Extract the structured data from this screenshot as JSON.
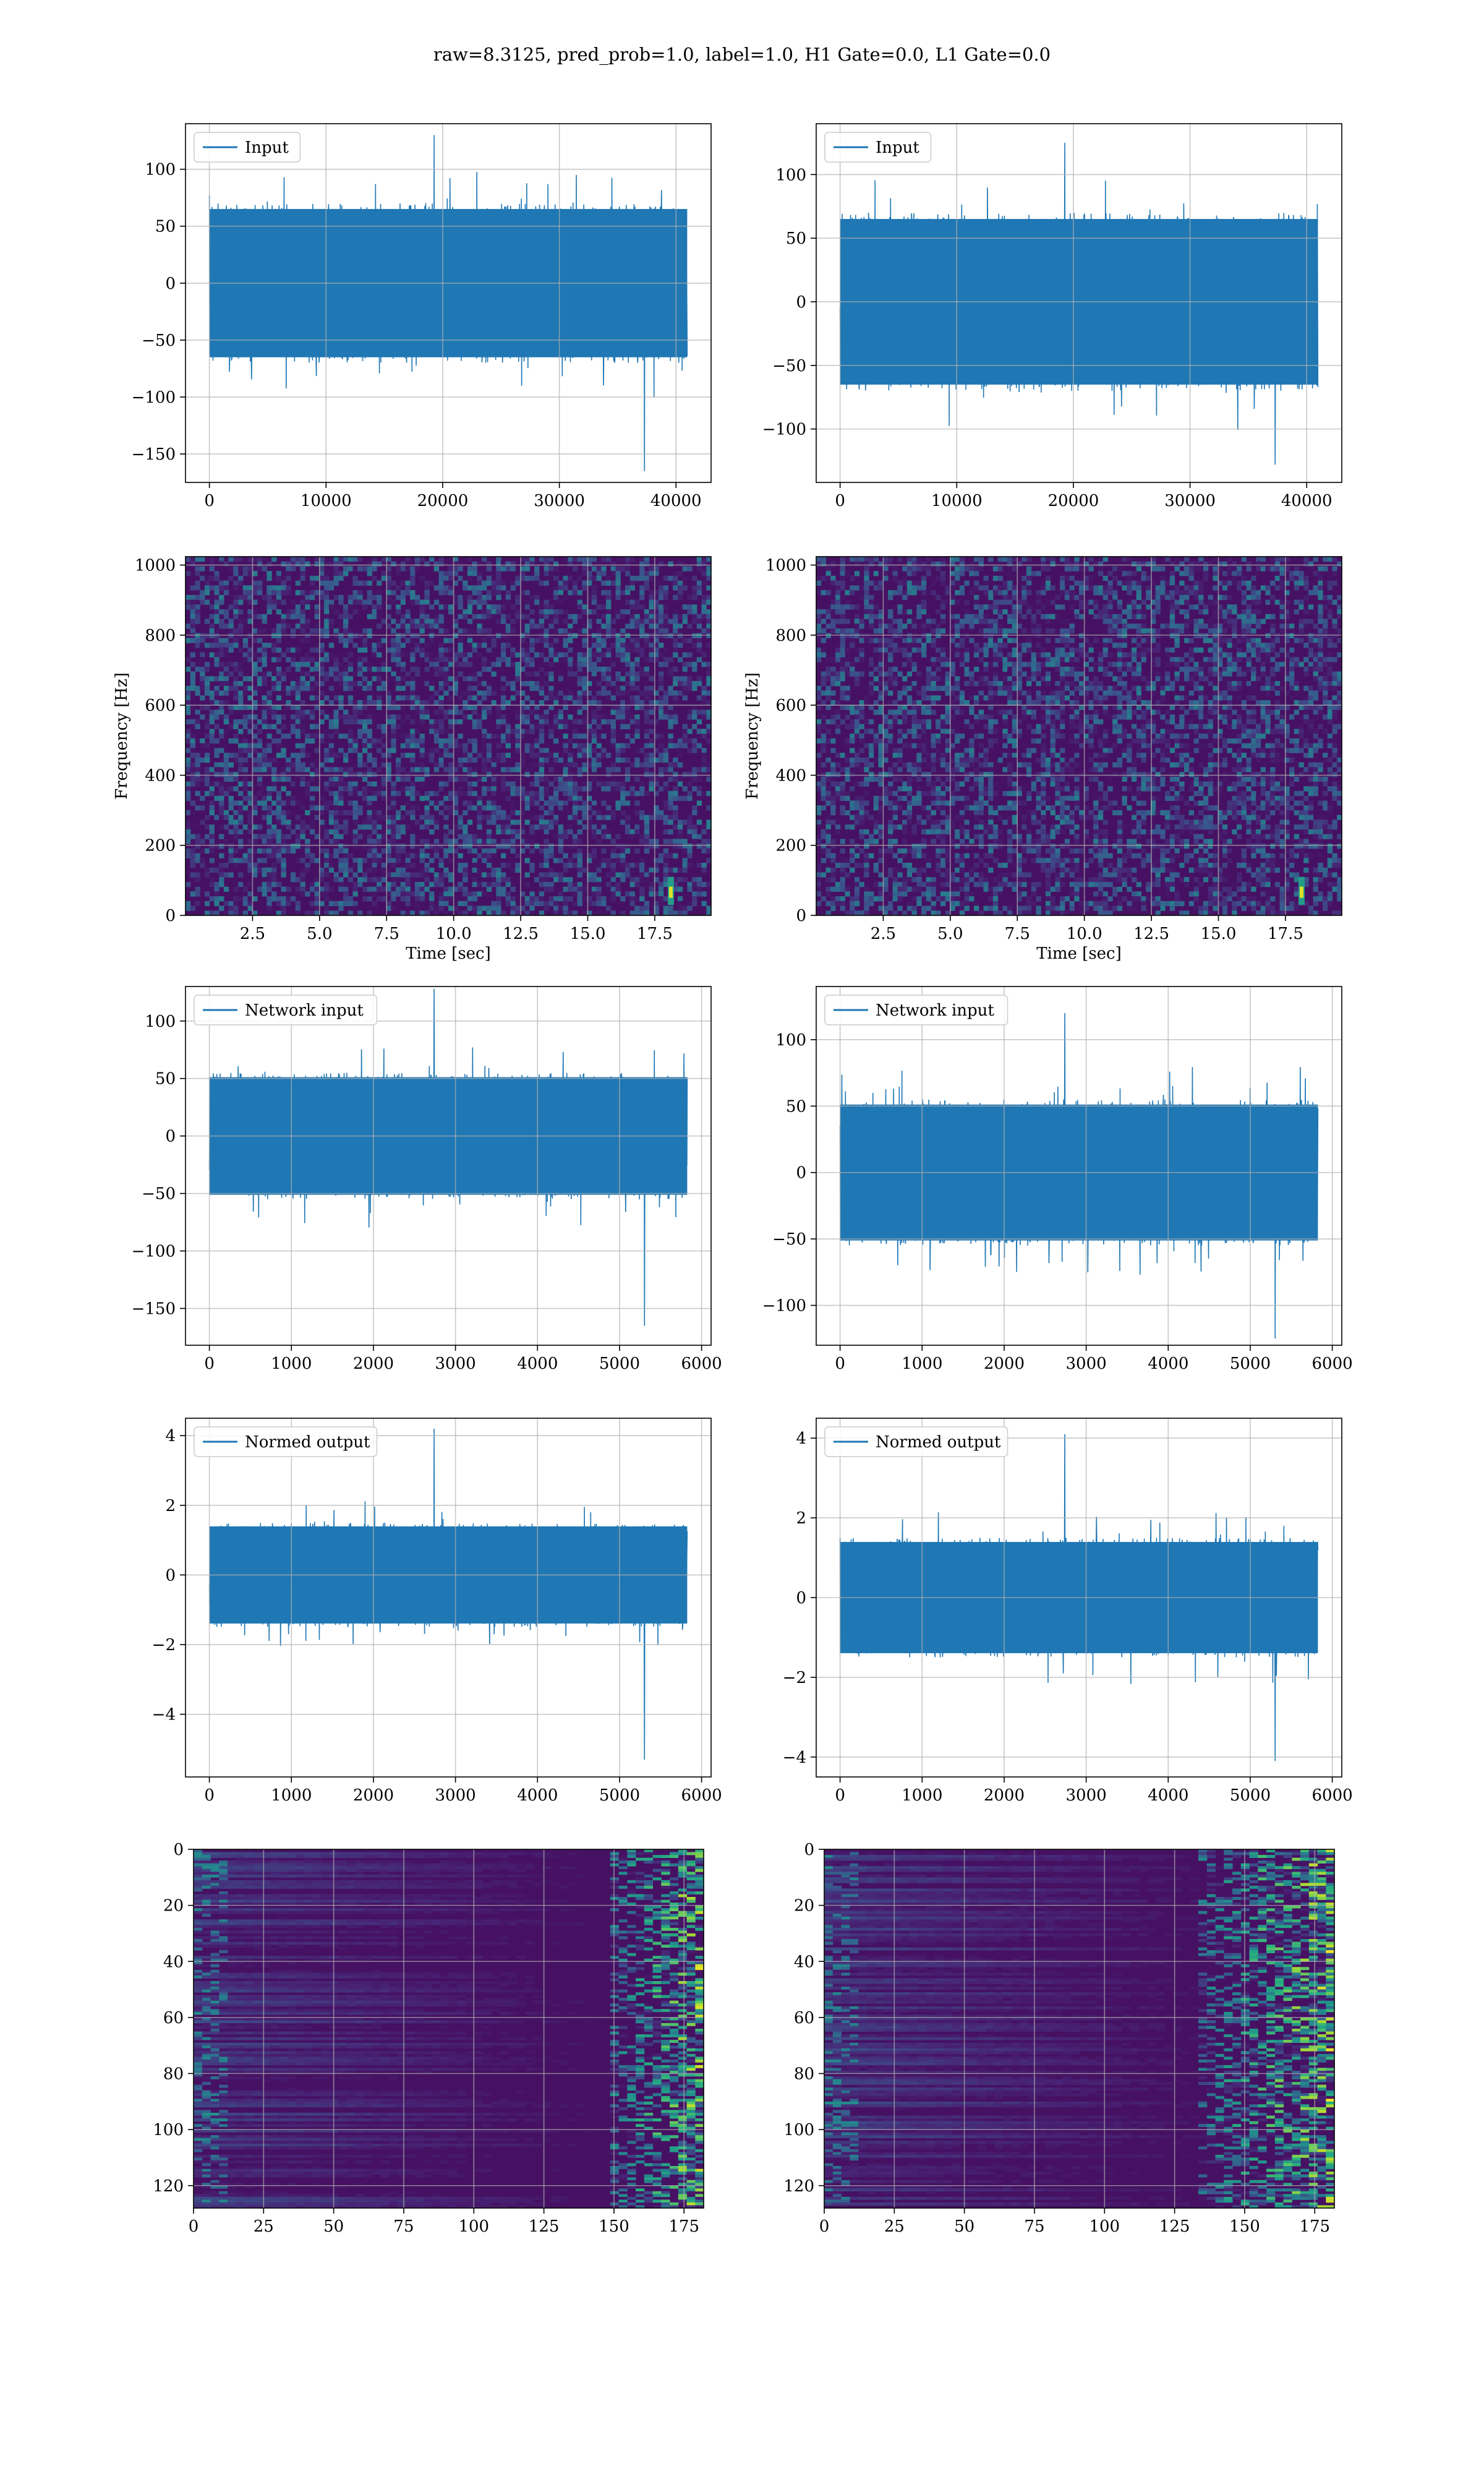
{
  "figure": {
    "suptitle": "raw=8.3125, pred_prob=1.0, label=1.0, H1 Gate=0.0, L1 Gate=0.0"
  },
  "colors": {
    "line": "#1f77b4",
    "grid": "#b0b0b0",
    "colormap": "viridis",
    "background": "#ffffff"
  },
  "chart_data": [
    {
      "id": "input-h1",
      "type": "line",
      "legend": [
        "Input"
      ],
      "legend_loc": "upper-left",
      "grid": true,
      "xlim": [
        -2048,
        43008
      ],
      "ylim": [
        -175,
        140
      ],
      "xticks": [
        0,
        10000,
        20000,
        30000,
        40000
      ],
      "yticks": [
        -150,
        -100,
        -50,
        0,
        50,
        100
      ],
      "xlabel": "",
      "ylabel": "",
      "series": [
        {
          "x_range": [
            0,
            40960
          ],
          "envelope": [
            -70,
            70
          ],
          "min_peak": -165,
          "max_peak": 130
        }
      ]
    },
    {
      "id": "input-l1",
      "type": "line",
      "legend": [
        "Input"
      ],
      "legend_loc": "upper-left",
      "grid": true,
      "xlim": [
        -2048,
        43008
      ],
      "ylim": [
        -142,
        140
      ],
      "xticks": [
        0,
        10000,
        20000,
        30000,
        40000
      ],
      "yticks": [
        -100,
        -50,
        0,
        50,
        100
      ],
      "xlabel": "",
      "ylabel": "",
      "series": [
        {
          "x_range": [
            0,
            40960
          ],
          "envelope": [
            -70,
            70
          ],
          "min_peak": -128,
          "max_peak": 125
        }
      ]
    },
    {
      "id": "spec-h1",
      "type": "heatmap",
      "colormap": "viridis",
      "grid": true,
      "xlim": [
        0,
        19.6
      ],
      "ylim": [
        0,
        1024
      ],
      "xticks": [
        2.5,
        5.0,
        7.5,
        10.0,
        12.5,
        15.0,
        17.5
      ],
      "yticks": [
        0,
        200,
        400,
        600,
        800,
        1000
      ],
      "xlabel": "Time [sec]",
      "ylabel": "Frequency [Hz]",
      "signal": {
        "t": 18.1,
        "f_range": [
          30,
          110
        ]
      }
    },
    {
      "id": "spec-l1",
      "type": "heatmap",
      "colormap": "viridis",
      "grid": true,
      "xlim": [
        0,
        19.6
      ],
      "ylim": [
        0,
        1024
      ],
      "xticks": [
        2.5,
        5.0,
        7.5,
        10.0,
        12.5,
        15.0,
        17.5
      ],
      "yticks": [
        0,
        200,
        400,
        600,
        800,
        1000
      ],
      "xlabel": "Time [sec]",
      "ylabel": "Frequency [Hz]",
      "signal": {
        "t": 18.1,
        "f_range": [
          30,
          110
        ]
      }
    },
    {
      "id": "netin-h1",
      "type": "line",
      "legend": [
        "Network input"
      ],
      "legend_loc": "upper-left",
      "grid": true,
      "xlim": [
        -291,
        6116
      ],
      "ylim": [
        -182,
        130
      ],
      "xticks": [
        0,
        1000,
        2000,
        3000,
        4000,
        5000,
        6000
      ],
      "yticks": [
        -150,
        -100,
        -50,
        0,
        50,
        100
      ],
      "xlabel": "",
      "ylabel": "",
      "series": [
        {
          "x_range": [
            0,
            5825
          ],
          "envelope": [
            -55,
            55
          ],
          "min_peak": -165,
          "max_peak": 128
        }
      ]
    },
    {
      "id": "netin-l1",
      "type": "line",
      "legend": [
        "Network input"
      ],
      "legend_loc": "upper-left",
      "grid": true,
      "xlim": [
        -291,
        6116
      ],
      "ylim": [
        -130,
        140
      ],
      "xticks": [
        0,
        1000,
        2000,
        3000,
        4000,
        5000,
        6000
      ],
      "yticks": [
        -100,
        -50,
        0,
        50,
        100
      ],
      "xlabel": "",
      "ylabel": "",
      "series": [
        {
          "x_range": [
            0,
            5825
          ],
          "envelope": [
            -55,
            55
          ],
          "min_peak": -125,
          "max_peak": 120
        }
      ]
    },
    {
      "id": "normed-h1",
      "type": "line",
      "legend": [
        "Normed output"
      ],
      "legend_loc": "upper-left",
      "grid": true,
      "xlim": [
        -291,
        6116
      ],
      "ylim": [
        -5.8,
        4.5
      ],
      "xticks": [
        0,
        1000,
        2000,
        3000,
        4000,
        5000,
        6000
      ],
      "yticks": [
        -4,
        -2,
        0,
        2,
        4
      ],
      "xlabel": "",
      "ylabel": "",
      "series": [
        {
          "x_range": [
            0,
            5825
          ],
          "envelope": [
            -1.5,
            1.5
          ],
          "min_peak": -5.3,
          "max_peak": 4.2
        }
      ]
    },
    {
      "id": "normed-l1",
      "type": "line",
      "legend": [
        "Normed output"
      ],
      "legend_loc": "upper-left",
      "grid": true,
      "xlim": [
        -291,
        6116
      ],
      "ylim": [
        -4.5,
        4.5
      ],
      "xticks": [
        0,
        1000,
        2000,
        3000,
        4000,
        5000,
        6000
      ],
      "yticks": [
        -4,
        -2,
        0,
        2,
        4
      ],
      "xlabel": "",
      "ylabel": "",
      "series": [
        {
          "x_range": [
            0,
            5825
          ],
          "envelope": [
            -1.5,
            1.5
          ],
          "min_peak": -4.1,
          "max_peak": 4.1
        }
      ]
    },
    {
      "id": "feat-h1",
      "type": "heatmap",
      "colormap": "viridis",
      "grid": true,
      "xlim": [
        0,
        182
      ],
      "ylim": [
        128,
        0
      ],
      "xticks": [
        0,
        25,
        50,
        75,
        100,
        125,
        150,
        175
      ],
      "yticks": [
        0,
        20,
        40,
        60,
        80,
        100,
        120
      ],
      "xlabel": "",
      "ylabel": "",
      "rows": 128,
      "cols": 182
    },
    {
      "id": "feat-l1",
      "type": "heatmap",
      "colormap": "viridis",
      "grid": true,
      "xlim": [
        0,
        182
      ],
      "ylim": [
        128,
        0
      ],
      "xticks": [
        0,
        25,
        50,
        75,
        100,
        125,
        150,
        175
      ],
      "yticks": [
        0,
        20,
        40,
        60,
        80,
        100,
        120
      ],
      "xlabel": "",
      "ylabel": "",
      "rows": 128,
      "cols": 182
    }
  ]
}
